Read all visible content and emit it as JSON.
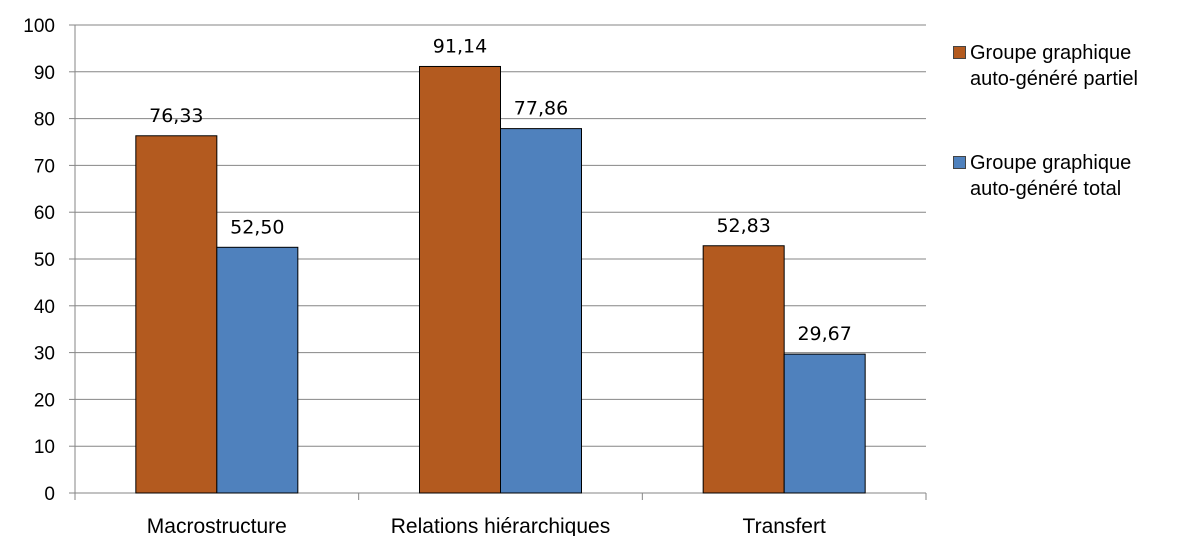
{
  "chart_data": {
    "type": "bar",
    "categories": [
      "Macrostructure",
      "Relations hiérarchiques",
      "Transfert"
    ],
    "series": [
      {
        "name": "Groupe graphique auto-généré partiel",
        "values": [
          76.33,
          91.14,
          52.83
        ],
        "labels": [
          "76,33",
          "91,14",
          "52,83"
        ],
        "color": "#B35A1F"
      },
      {
        "name": "Groupe graphique auto-généré total",
        "values": [
          52.5,
          77.86,
          29.67
        ],
        "labels": [
          "52,50",
          "77,86",
          "29,67"
        ],
        "color": "#4F81BD"
      }
    ],
    "yticks": [
      "0",
      "10",
      "20",
      "30",
      "40",
      "50",
      "60",
      "70",
      "80",
      "90",
      "100"
    ],
    "ylim": [
      0,
      100
    ],
    "grid": true,
    "legend_position": "right",
    "title": "",
    "xlabel": "",
    "ylabel": ""
  },
  "legend": {
    "items": [
      {
        "line1": "Groupe graphique",
        "line2": "auto-généré partiel"
      },
      {
        "line1": "Groupe graphique",
        "line2": "auto-généré total"
      }
    ]
  }
}
